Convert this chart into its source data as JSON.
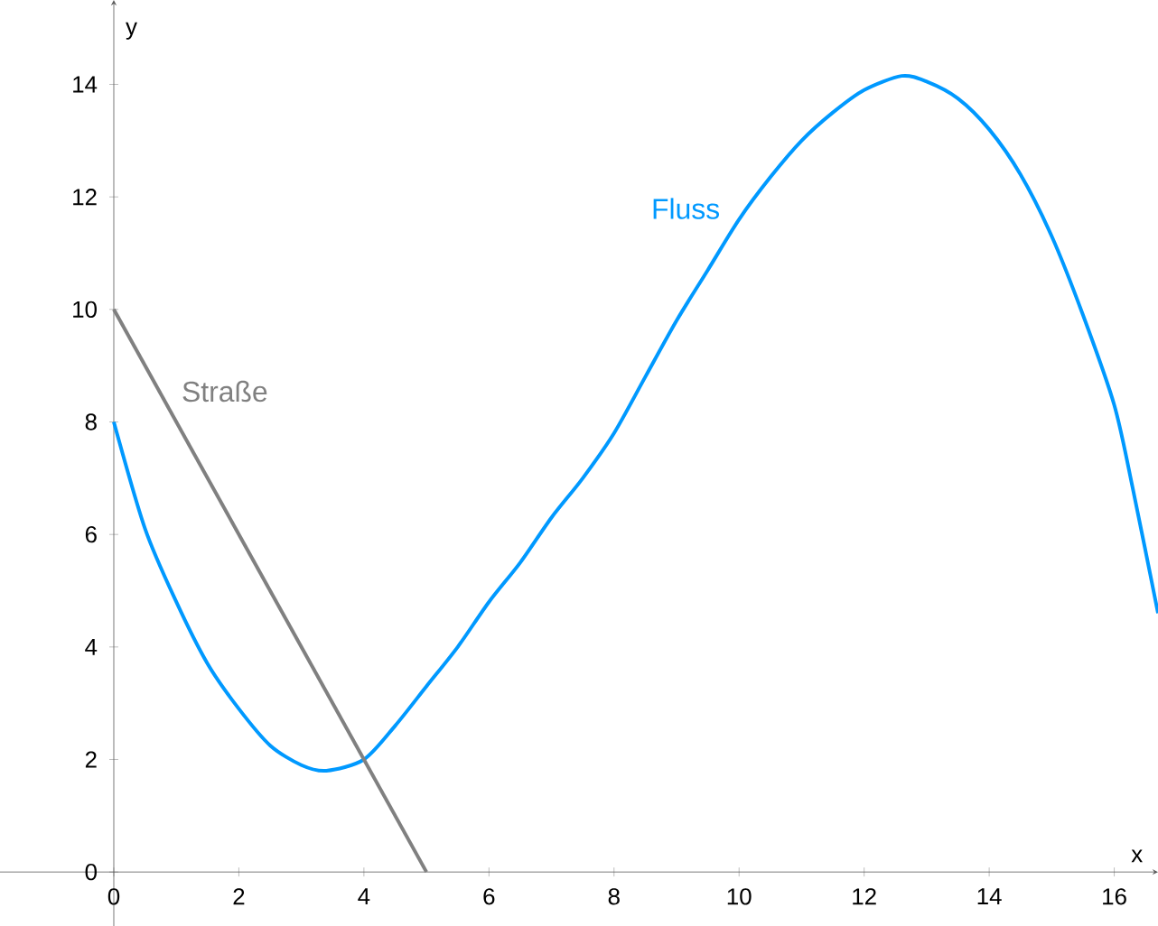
{
  "chart_data": {
    "type": "line",
    "xlabel": "x",
    "ylabel": "y",
    "xlim": [
      -1.82,
      16.7
    ],
    "ylim": [
      -0.96,
      15.5
    ],
    "xticks": [
      0,
      2,
      4,
      6,
      8,
      10,
      12,
      14,
      16
    ],
    "yticks": [
      0,
      2,
      4,
      6,
      8,
      10,
      12,
      14
    ],
    "series": [
      {
        "name": "Fluss",
        "color": "#0099ff",
        "x": [
          0,
          0.5,
          1,
          1.5,
          2,
          2.5,
          3,
          3.4,
          4,
          4.5,
          5,
          5.5,
          6,
          6.5,
          7,
          7.5,
          8,
          8.5,
          9,
          9.5,
          10,
          10.5,
          11,
          11.5,
          12,
          12.6,
          13,
          13.5,
          14,
          14.5,
          15,
          15.5,
          16,
          16.3,
          16.7
        ],
        "values": [
          8,
          6.1,
          4.8,
          3.7,
          2.9,
          2.25,
          1.9,
          1.8,
          2.0,
          2.6,
          3.3,
          4.0,
          4.8,
          5.5,
          6.3,
          7.0,
          7.8,
          8.8,
          9.8,
          10.7,
          11.6,
          12.35,
          13.0,
          13.5,
          13.9,
          14.15,
          14.05,
          13.75,
          13.2,
          12.4,
          11.3,
          9.9,
          8.3,
          6.8,
          4.6
        ]
      },
      {
        "name": "Straße",
        "color": "#808080",
        "x": [
          0,
          5
        ],
        "values": [
          10,
          0
        ]
      }
    ]
  }
}
